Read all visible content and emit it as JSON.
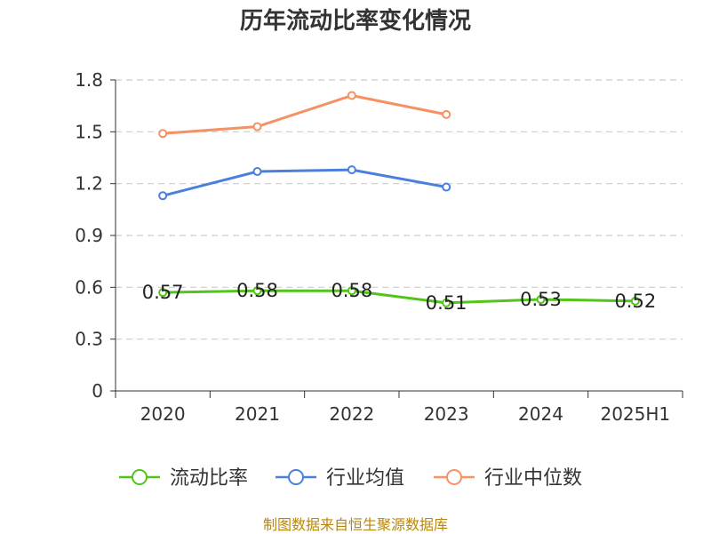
{
  "chart_data": {
    "type": "line",
    "title": "历年流动比率变化情况",
    "categories": [
      "2020",
      "2021",
      "2022",
      "2023",
      "2024",
      "2025H1"
    ],
    "yticks": [
      "0",
      "0.3",
      "0.6",
      "0.9",
      "1.2",
      "1.5",
      "1.8"
    ],
    "ylim": [
      0,
      1.8
    ],
    "grid": true,
    "legend_position": "bottom",
    "series": [
      {
        "name": "流动比率",
        "color": "#52c41a",
        "values": [
          0.57,
          0.58,
          0.58,
          0.51,
          0.53,
          0.52
        ],
        "labels": [
          "0.57",
          "0.58",
          "0.58",
          "0.51",
          "0.53",
          "0.52"
        ]
      },
      {
        "name": "行业均值",
        "color": "#4a7fdb",
        "values": [
          1.13,
          1.27,
          1.28,
          1.18,
          null,
          null
        ]
      },
      {
        "name": "行业中位数",
        "color": "#f59162",
        "values": [
          1.49,
          1.53,
          1.71,
          1.6,
          null,
          null
        ]
      }
    ]
  },
  "footer": {
    "source": "制图数据来自恒生聚源数据库"
  }
}
